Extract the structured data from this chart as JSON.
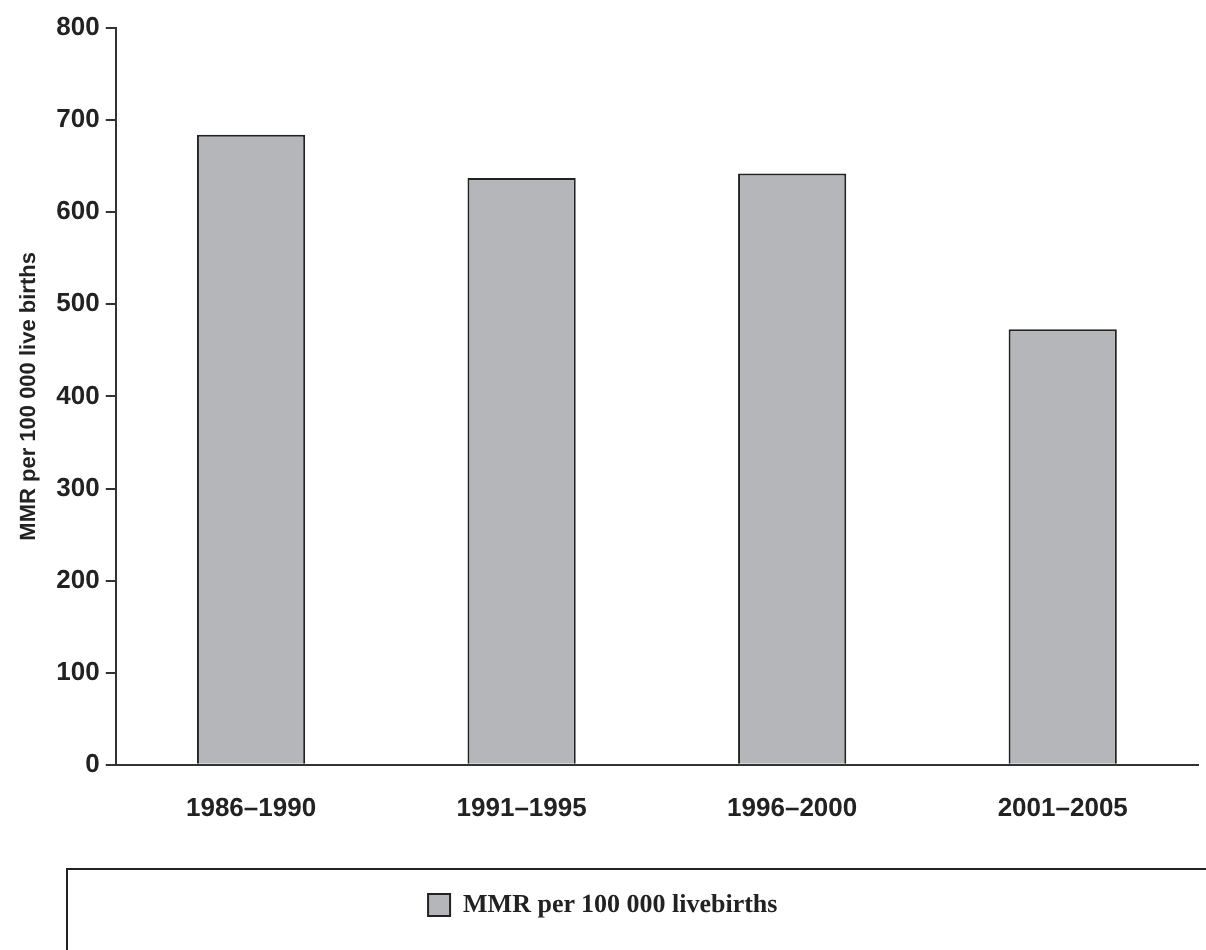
{
  "chart_data": {
    "type": "bar",
    "ylabel": "MMR per 100 000 live births",
    "categories": [
      "1986–1990",
      "1991–1995",
      "1996–2000",
      "2001–2005"
    ],
    "series": [
      {
        "name": "MMR per 100 000 livebirths",
        "color": "#b5b6ba",
        "values": [
          684,
          637,
          642,
          473
        ]
      }
    ],
    "ylim": [
      0,
      800
    ],
    "yticks": [
      0,
      100,
      200,
      300,
      400,
      500,
      600,
      700,
      800
    ],
    "grid": false,
    "legend": "bottom"
  }
}
